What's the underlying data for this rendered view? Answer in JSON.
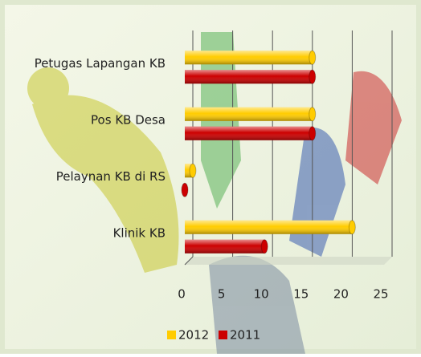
{
  "chart_data": {
    "type": "bar",
    "orientation": "horizontal",
    "categories": [
      "Petugas Lapangan KB",
      "Pos KB Desa",
      "Pelaynan KB di RS",
      "Klinik KB"
    ],
    "series": [
      {
        "name": "2012",
        "color": "#ffcc00",
        "values": [
          16,
          16,
          1,
          21
        ]
      },
      {
        "name": "2011",
        "color": "#cc0000",
        "values": [
          16,
          16,
          0,
          10
        ]
      }
    ],
    "xlim": [
      0,
      25
    ],
    "xticks": [
      0,
      5,
      10,
      15,
      20,
      25
    ],
    "grid": true,
    "legend": "bottom"
  }
}
